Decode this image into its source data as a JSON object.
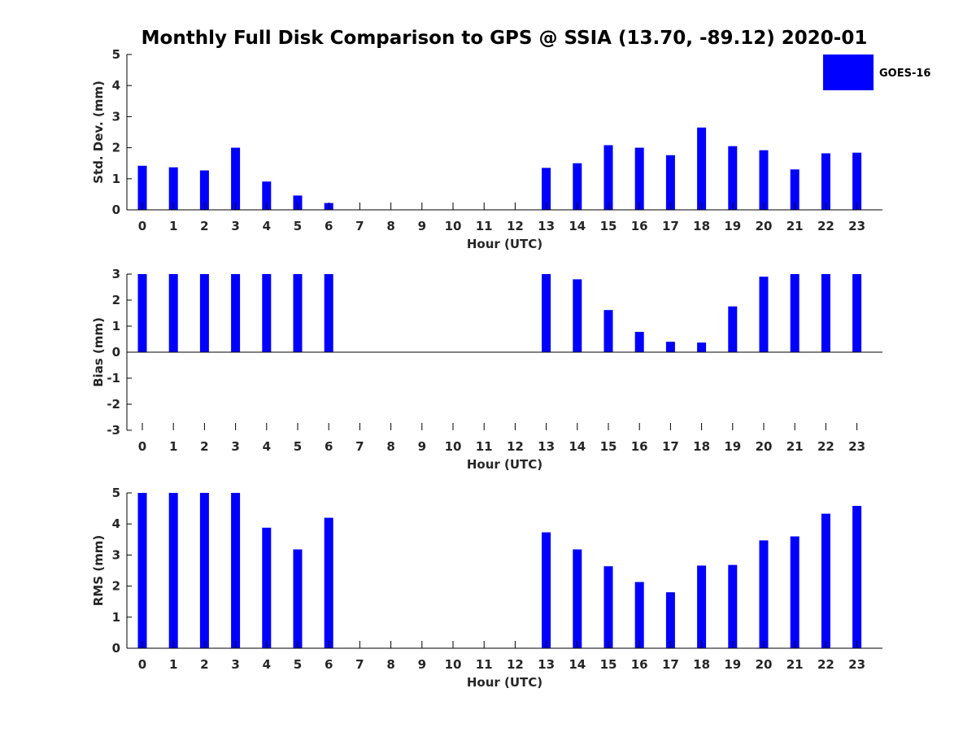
{
  "title": "Monthly Full Disk Comparison to GPS @ SSIA (13.70, -89.12) 2020-01",
  "legend": {
    "label": "GOES-16",
    "color": "#0000ff",
    "placement": "top-right"
  },
  "chart_data": [
    {
      "type": "bar",
      "categories": [
        "0",
        "1",
        "2",
        "3",
        "4",
        "5",
        "6",
        "7",
        "8",
        "9",
        "10",
        "11",
        "12",
        "13",
        "14",
        "15",
        "16",
        "17",
        "18",
        "19",
        "20",
        "21",
        "22",
        "23"
      ],
      "values": [
        1.42,
        1.37,
        1.27,
        2.0,
        0.91,
        0.46,
        0.22,
        null,
        null,
        null,
        null,
        null,
        null,
        1.35,
        1.5,
        2.08,
        2.0,
        1.76,
        2.65,
        2.05,
        1.92,
        1.3,
        1.82,
        1.84
      ],
      "xlabel": "Hour (UTC)",
      "ylabel": "Std. Dev. (mm)",
      "ylim": [
        0,
        5
      ],
      "yticks": [
        "0",
        "1",
        "2",
        "3",
        "4",
        "5"
      ],
      "grid": false
    },
    {
      "type": "bar",
      "categories": [
        "0",
        "1",
        "2",
        "3",
        "4",
        "5",
        "6",
        "7",
        "8",
        "9",
        "10",
        "11",
        "12",
        "13",
        "14",
        "15",
        "16",
        "17",
        "18",
        "19",
        "20",
        "21",
        "22",
        "23"
      ],
      "values": [
        3.0,
        3.0,
        3.0,
        3.0,
        3.0,
        3.0,
        3.0,
        null,
        null,
        null,
        null,
        null,
        null,
        3.0,
        2.8,
        1.62,
        0.78,
        0.4,
        0.37,
        1.76,
        2.9,
        3.0,
        3.0,
        3.0
      ],
      "xlabel": "Hour (UTC)",
      "ylabel": "Bias (mm)",
      "ylim": [
        -3,
        3
      ],
      "yticks": [
        "-3",
        "-2",
        "-1",
        "0",
        "1",
        "2",
        "3"
      ],
      "grid": false
    },
    {
      "type": "bar",
      "categories": [
        "0",
        "1",
        "2",
        "3",
        "4",
        "5",
        "6",
        "7",
        "8",
        "9",
        "10",
        "11",
        "12",
        "13",
        "14",
        "15",
        "16",
        "17",
        "18",
        "19",
        "20",
        "21",
        "22",
        "23"
      ],
      "values": [
        5.0,
        5.0,
        5.0,
        5.0,
        3.88,
        3.18,
        4.2,
        null,
        null,
        null,
        null,
        null,
        null,
        3.73,
        3.18,
        2.64,
        2.13,
        1.8,
        2.66,
        2.68,
        3.47,
        3.6,
        4.33,
        4.58
      ],
      "xlabel": "Hour (UTC)",
      "ylabel": "RMS (mm)",
      "ylim": [
        0,
        5
      ],
      "yticks": [
        "0",
        "1",
        "2",
        "3",
        "4",
        "5"
      ],
      "grid": false
    }
  ]
}
